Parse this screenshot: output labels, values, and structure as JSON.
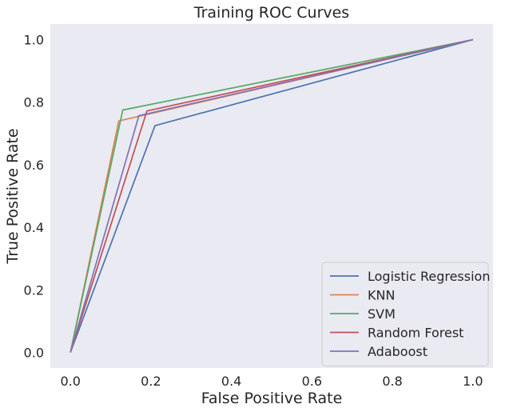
{
  "chart_data": {
    "type": "line",
    "title": "Training ROC Curves",
    "xlabel": "False Positive Rate",
    "ylabel": "True Positive Rate",
    "xlim": [
      -0.05,
      1.05
    ],
    "ylim": [
      -0.05,
      1.05
    ],
    "xticks": [
      0.0,
      0.2,
      0.4,
      0.6,
      0.8,
      1.0
    ],
    "yticks": [
      0.0,
      0.2,
      0.4,
      0.6,
      0.8,
      1.0
    ],
    "xtick_labels": [
      "0.0",
      "0.2",
      "0.4",
      "0.6",
      "0.8",
      "1.0"
    ],
    "ytick_labels": [
      "0.0",
      "0.2",
      "0.4",
      "0.6",
      "0.8",
      "1.0"
    ],
    "grid": false,
    "background": "#eaeaf2",
    "legend_position": "lower right",
    "series": [
      {
        "name": "Logistic Regression",
        "color": "#4c72b0",
        "x": [
          0.0,
          0.21,
          1.0
        ],
        "y": [
          0.0,
          0.725,
          1.0
        ]
      },
      {
        "name": "KNN",
        "color": "#dd8452",
        "x": [
          0.0,
          0.12,
          1.0
        ],
        "y": [
          0.0,
          0.74,
          1.0
        ]
      },
      {
        "name": "SVM",
        "color": "#55a868",
        "x": [
          0.0,
          0.13,
          1.0
        ],
        "y": [
          0.0,
          0.775,
          1.0
        ]
      },
      {
        "name": "Random Forest",
        "color": "#c44e52",
        "x": [
          0.0,
          0.19,
          1.0
        ],
        "y": [
          0.0,
          0.772,
          1.0
        ]
      },
      {
        "name": "Adaboost",
        "color": "#8172b3",
        "x": [
          0.0,
          0.17,
          1.0
        ],
        "y": [
          0.0,
          0.757,
          1.0
        ]
      }
    ]
  }
}
